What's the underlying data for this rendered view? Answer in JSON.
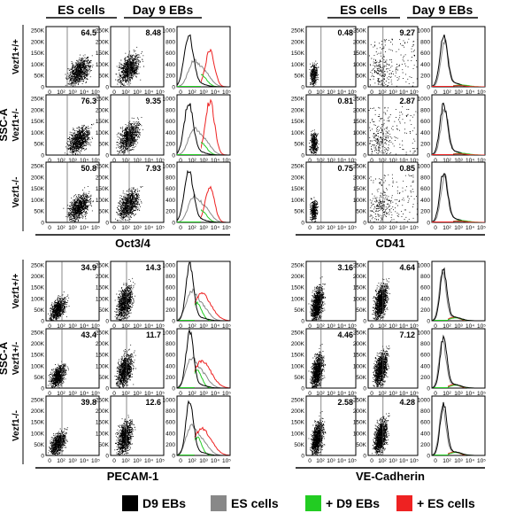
{
  "header": {
    "es_cells": "ES cells",
    "day9_ebs": "Day 9 EBs"
  },
  "y_axis_label": "SSC-A",
  "genotypes": [
    "Vezf1+/+",
    "Vezf1+/-",
    "Vezf1-/-"
  ],
  "colors": {
    "D9 EBs": "#000000",
    "ES cells": "#888888",
    "+ D9 EBs": "#22cc22",
    "+ ES cells": "#ee2222"
  },
  "legend": [
    {
      "label": "D9 EBs",
      "color": "#000000"
    },
    {
      "label": "ES cells",
      "color": "#888888"
    },
    {
      "label": "+ D9 EBs",
      "color": "#22cc22"
    },
    {
      "label": "+ ES cells",
      "color": "#ee2222"
    }
  ],
  "chart_data": {
    "type": "scatter",
    "description_type": "flow-cytometry dot plots and histograms",
    "scatter_axes": {
      "y_ticks": [
        "0",
        "50K",
        "100K",
        "150K",
        "200K",
        "250K"
      ],
      "x_ticks": [
        "0",
        "10²",
        "10³",
        "10⁴",
        "10⁵"
      ]
    },
    "histogram_axes": {
      "y_ticks": [
        "0",
        "200",
        "400",
        "600",
        "800",
        "1000"
      ]
    },
    "panels": [
      {
        "marker": "Oct3/4",
        "percentages": {
          "es_cells": [
            "64.5",
            "76.3",
            "50.8"
          ],
          "day9_ebs": [
            "8.48",
            "9.35",
            "7.93"
          ]
        },
        "histogram": "overlay"
      },
      {
        "marker": "CD41",
        "percentages": {
          "es_cells": [
            "0.48",
            "0.81",
            "0.75"
          ],
          "day9_ebs": [
            "9.27",
            "2.87",
            "0.85"
          ]
        },
        "histogram": "overlay"
      },
      {
        "marker": "PECAM-1",
        "percentages": {
          "es_cells": [
            "34.9",
            "43.4",
            "39.8"
          ],
          "day9_ebs": [
            "14.3",
            "11.7",
            "12.6"
          ]
        },
        "histogram": "overlay"
      },
      {
        "marker": "VE-Cadherin",
        "percentages": {
          "es_cells": [
            "3.16",
            "4.46",
            "2.58"
          ],
          "day9_ebs": [
            "4.64",
            "7.12",
            "4.28"
          ]
        },
        "histogram": "overlay"
      }
    ]
  }
}
